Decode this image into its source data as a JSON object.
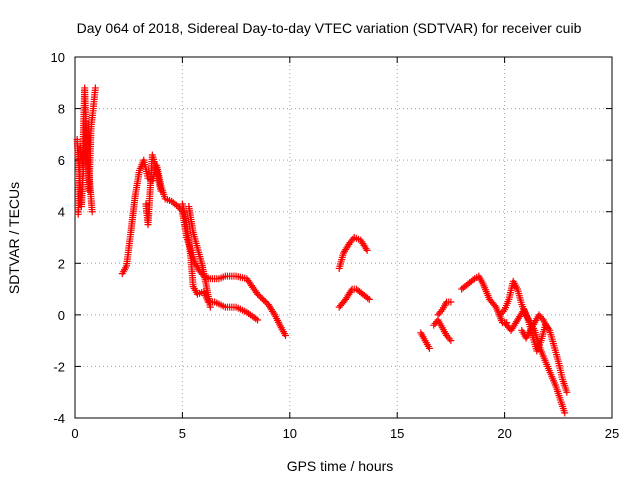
{
  "chart_data": {
    "type": "scatter",
    "title": "Day 064 of 2018, Sidereal Day-to-day VTEC variation (SDTVAR) for receiver cuib",
    "xlabel": "GPS time / hours",
    "ylabel": "SDTVAR / TECUs",
    "xlim": [
      0,
      25
    ],
    "ylim": [
      -4,
      10
    ],
    "xticks": [
      0,
      5,
      10,
      15,
      20,
      25
    ],
    "yticks": [
      -4,
      -2,
      0,
      2,
      4,
      6,
      8,
      10
    ],
    "grid": true,
    "marker": "+",
    "color": "#ff0000",
    "series": [
      {
        "name": "SDTVAR",
        "segments": [
          [
            [
              0.15,
              3.9
            ],
            [
              0.25,
              6.5
            ],
            [
              0.35,
              5.8
            ],
            [
              0.45,
              8.8
            ],
            [
              0.55,
              6.5
            ],
            [
              0.65,
              4.8
            ],
            [
              0.75,
              7.3
            ],
            [
              0.85,
              8.0
            ],
            [
              0.95,
              8.8
            ]
          ],
          [
            [
              0.1,
              6.8
            ],
            [
              0.3,
              4.2
            ],
            [
              0.5,
              7.5
            ],
            [
              0.65,
              5.5
            ],
            [
              0.8,
              4.0
            ]
          ],
          [
            [
              2.2,
              1.6
            ],
            [
              2.4,
              1.9
            ],
            [
              2.6,
              3.2
            ],
            [
              2.8,
              4.6
            ],
            [
              3.0,
              5.6
            ],
            [
              3.2,
              6.0
            ],
            [
              3.4,
              5.3
            ],
            [
              3.6,
              5.2
            ],
            [
              3.8,
              5.8
            ],
            [
              4.0,
              5.0
            ],
            [
              4.2,
              4.5
            ],
            [
              4.5,
              4.4
            ],
            [
              4.8,
              4.2
            ],
            [
              5.0,
              4.0
            ],
            [
              5.2,
              3.0
            ],
            [
              5.4,
              2.5
            ],
            [
              5.6,
              2.0
            ],
            [
              5.8,
              1.7
            ],
            [
              6.0,
              1.5
            ],
            [
              6.3,
              1.4
            ],
            [
              6.7,
              1.4
            ],
            [
              7.0,
              1.5
            ],
            [
              7.5,
              1.5
            ],
            [
              8.0,
              1.4
            ],
            [
              8.5,
              0.8
            ],
            [
              9.0,
              0.4
            ],
            [
              9.3,
              0.0
            ],
            [
              9.6,
              -0.5
            ],
            [
              9.8,
              -0.8
            ]
          ],
          [
            [
              3.3,
              4.3
            ],
            [
              3.4,
              3.5
            ],
            [
              3.6,
              6.2
            ],
            [
              3.8,
              5.6
            ],
            [
              4.0,
              4.8
            ]
          ],
          [
            [
              5.0,
              4.3
            ],
            [
              5.2,
              3.5
            ],
            [
              5.4,
              2.2
            ],
            [
              5.5,
              1.1
            ],
            [
              5.7,
              0.8
            ],
            [
              6.0,
              0.9
            ],
            [
              6.2,
              0.5
            ],
            [
              6.5,
              0.5
            ],
            [
              7.0,
              0.3
            ],
            [
              7.5,
              0.3
            ],
            [
              8.0,
              0.1
            ],
            [
              8.5,
              -0.2
            ]
          ],
          [
            [
              5.3,
              4.2
            ],
            [
              5.5,
              3.2
            ],
            [
              5.7,
              2.6
            ],
            [
              5.9,
              2.0
            ],
            [
              6.1,
              1.2
            ],
            [
              6.3,
              0.3
            ]
          ],
          [
            [
              12.3,
              1.8
            ],
            [
              12.5,
              2.4
            ],
            [
              12.8,
              2.8
            ],
            [
              13.0,
              3.0
            ],
            [
              13.3,
              2.9
            ],
            [
              13.6,
              2.5
            ]
          ],
          [
            [
              12.3,
              0.3
            ],
            [
              12.6,
              0.6
            ],
            [
              12.9,
              1.0
            ],
            [
              13.1,
              1.0
            ],
            [
              13.4,
              0.8
            ],
            [
              13.7,
              0.6
            ]
          ],
          [
            [
              16.1,
              -0.7
            ],
            [
              16.3,
              -1.0
            ],
            [
              16.5,
              -1.3
            ]
          ],
          [
            [
              16.7,
              -0.4
            ],
            [
              16.9,
              -0.2
            ],
            [
              17.1,
              -0.5
            ],
            [
              17.3,
              -0.8
            ],
            [
              17.5,
              -1.0
            ]
          ],
          [
            [
              16.9,
              0.0
            ],
            [
              17.1,
              0.2
            ],
            [
              17.3,
              0.5
            ],
            [
              17.5,
              0.5
            ]
          ],
          [
            [
              18.0,
              1.0
            ],
            [
              18.3,
              1.2
            ],
            [
              18.6,
              1.4
            ],
            [
              18.8,
              1.5
            ],
            [
              19.0,
              1.2
            ],
            [
              19.3,
              0.6
            ],
            [
              19.6,
              0.3
            ],
            [
              19.9,
              -0.3
            ],
            [
              20.1,
              -0.3
            ]
          ],
          [
            [
              19.8,
              0.0
            ],
            [
              20.0,
              0.2
            ],
            [
              20.2,
              0.6
            ],
            [
              20.4,
              1.3
            ],
            [
              20.6,
              1.0
            ],
            [
              20.8,
              0.4
            ],
            [
              21.0,
              0.0
            ],
            [
              21.2,
              -0.3
            ],
            [
              21.4,
              -0.6
            ],
            [
              21.6,
              -1.2
            ],
            [
              21.8,
              -1.6
            ],
            [
              22.0,
              -2.0
            ],
            [
              22.2,
              -2.4
            ],
            [
              22.4,
              -2.8
            ],
            [
              22.6,
              -3.3
            ],
            [
              22.8,
              -3.8
            ]
          ],
          [
            [
              20.0,
              -0.3
            ],
            [
              20.3,
              -0.6
            ],
            [
              20.6,
              -0.2
            ],
            [
              20.9,
              0.2
            ],
            [
              21.1,
              -0.2
            ],
            [
              21.3,
              -0.8
            ],
            [
              21.5,
              -1.4
            ],
            [
              21.7,
              -1.0
            ],
            [
              21.9,
              -0.4
            ],
            [
              22.1,
              -0.6
            ],
            [
              22.3,
              -1.2
            ],
            [
              22.5,
              -1.8
            ],
            [
              22.7,
              -2.5
            ],
            [
              22.9,
              -3.0
            ]
          ],
          [
            [
              20.8,
              -0.6
            ],
            [
              21.0,
              -0.9
            ],
            [
              21.2,
              -0.6
            ],
            [
              21.4,
              -0.3
            ],
            [
              21.6,
              0.0
            ],
            [
              21.8,
              -0.2
            ],
            [
              22.0,
              -0.5
            ]
          ]
        ]
      }
    ]
  }
}
